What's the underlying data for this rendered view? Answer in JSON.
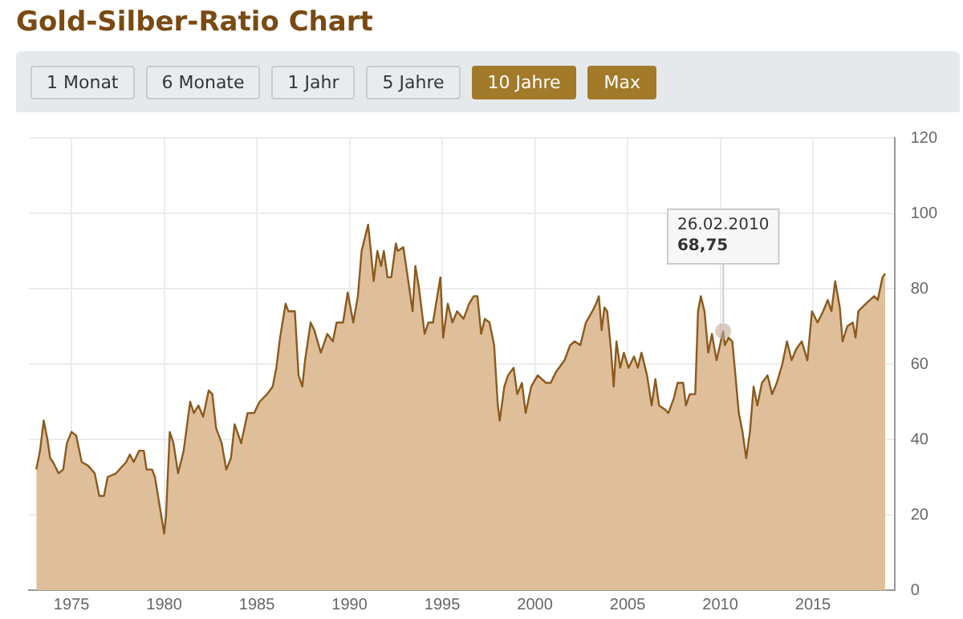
{
  "chart_data": {
    "type": "area",
    "title": "Gold-Silber-Ratio Chart",
    "annotations": [
      {
        "text": "26.02.2010\n68,75",
        "x": 2010.16,
        "y": 68.75
      },
      "1 Monat",
      "6 Monate",
      "1 Jahr",
      "5 Jahre",
      "10 Jahre",
      "Max"
    ],
    "x": [
      1973.1,
      1973.3,
      1973.5,
      1973.7,
      1973.85,
      1974.0,
      1974.3,
      1974.55,
      1974.75,
      1975.0,
      1975.25,
      1975.55,
      1975.9,
      1976.25,
      1976.5,
      1976.75,
      1976.95,
      1977.4,
      1977.95,
      1978.15,
      1978.35,
      1978.65,
      1978.9,
      1979.05,
      1979.35,
      1979.5,
      1979.7,
      1980.0,
      1980.1,
      1980.3,
      1980.5,
      1980.75,
      1981.05,
      1981.4,
      1981.6,
      1981.85,
      1982.1,
      1982.4,
      1982.6,
      1982.8,
      1983.1,
      1983.35,
      1983.6,
      1983.8,
      1984.15,
      1984.5,
      1984.85,
      1985.15,
      1985.55,
      1985.85,
      1986.05,
      1986.25,
      1986.55,
      1986.7,
      1986.85,
      1987.05,
      1987.25,
      1987.45,
      1987.6,
      1987.9,
      1988.1,
      1988.45,
      1988.8,
      1989.1,
      1989.3,
      1989.65,
      1989.9,
      1990.2,
      1990.45,
      1990.65,
      1991.0,
      1991.15,
      1991.3,
      1991.5,
      1991.7,
      1991.85,
      1992.05,
      1992.25,
      1992.5,
      1992.6,
      1992.9,
      1993.2,
      1993.4,
      1993.55,
      1993.75,
      1994.05,
      1994.25,
      1994.5,
      1994.9,
      1995.05,
      1995.3,
      1995.55,
      1995.8,
      1996.15,
      1996.45,
      1996.7,
      1996.9,
      1997.1,
      1997.3,
      1997.55,
      1997.8,
      1998.0,
      1998.1,
      1998.35,
      1998.55,
      1998.85,
      1999.05,
      1999.3,
      1999.5,
      1999.8,
      2000.15,
      2000.6,
      2000.85,
      2001.15,
      2001.3,
      2001.6,
      2001.9,
      2002.15,
      2002.45,
      2002.75,
      2003.1,
      2003.3,
      2003.45,
      2003.6,
      2003.75,
      2003.9,
      2004.1,
      2004.25,
      2004.4,
      2004.6,
      2004.8,
      2005.05,
      2005.35,
      2005.55,
      2005.75,
      2006.05,
      2006.3,
      2006.5,
      2006.7,
      2007.0,
      2007.2,
      2007.5,
      2007.7,
      2008.0,
      2008.15,
      2008.35,
      2008.65,
      2008.8,
      2008.95,
      2009.15,
      2009.35,
      2009.55,
      2009.8,
      2010.16,
      2010.25,
      2010.45,
      2010.65,
      2010.8,
      2011.0,
      2011.2,
      2011.4,
      2011.6,
      2011.8,
      2012.0,
      2012.25,
      2012.55,
      2012.8,
      2013.05,
      2013.35,
      2013.6,
      2013.85,
      2014.1,
      2014.4,
      2014.7,
      2014.95,
      2015.25,
      2015.55,
      2015.8,
      2016.0,
      2016.2,
      2016.45,
      2016.6,
      2016.85,
      2017.15,
      2017.3,
      2017.45,
      2017.85,
      2018.3,
      2018.5,
      2018.75,
      2018.9
    ],
    "series": [
      {
        "color": "#8b5a1e",
        "values": [
          32,
          37,
          45,
          40,
          35,
          34,
          31,
          32,
          39,
          42,
          41,
          34,
          33,
          31,
          25,
          25,
          30,
          31,
          34,
          36,
          34,
          37,
          37,
          32,
          32,
          30,
          24,
          15,
          20,
          42,
          39,
          31,
          37,
          50,
          47,
          49,
          46,
          53,
          52,
          43,
          39,
          32,
          35,
          44,
          39,
          47,
          47,
          50,
          52,
          54,
          59,
          67,
          76,
          74,
          74,
          74,
          57,
          54,
          61,
          71,
          69,
          63,
          68,
          66,
          71,
          71,
          79,
          71,
          78,
          90,
          97,
          90,
          82,
          90,
          86,
          90,
          83,
          83,
          92,
          90,
          91,
          81,
          74,
          86,
          80,
          68,
          71,
          71,
          83,
          67,
          76,
          71,
          74,
          72,
          76,
          78,
          78,
          68,
          72,
          71,
          65,
          49,
          45,
          54,
          57,
          59,
          52,
          55,
          47,
          54,
          57,
          55,
          55,
          58,
          59,
          61,
          65,
          66,
          65,
          71,
          74,
          76,
          78,
          69,
          75,
          74,
          64,
          54,
          66,
          59,
          63,
          59,
          62,
          59,
          63,
          57,
          49,
          56,
          49,
          48,
          47,
          51,
          55,
          55,
          49,
          52,
          52,
          74,
          78,
          74,
          63,
          68,
          61,
          68.75,
          65,
          67,
          66,
          58,
          47,
          42,
          35,
          42,
          54,
          49,
          55,
          57,
          52,
          55,
          60,
          66,
          61,
          64,
          66,
          61,
          74,
          71,
          74,
          77,
          74,
          82,
          75,
          66,
          70,
          71,
          67,
          74,
          76,
          78,
          77,
          83,
          84
        ]
      }
    ],
    "xlim": [
      1972.7,
      2019.4
    ],
    "xticks": [
      1975,
      1980,
      1985,
      1990,
      1995,
      2000,
      2005,
      2010,
      2015
    ],
    "ylim": [
      0,
      120
    ],
    "yticks": [
      0,
      20,
      40,
      60,
      80,
      100,
      120
    ],
    "grid": true,
    "legend": false
  }
}
